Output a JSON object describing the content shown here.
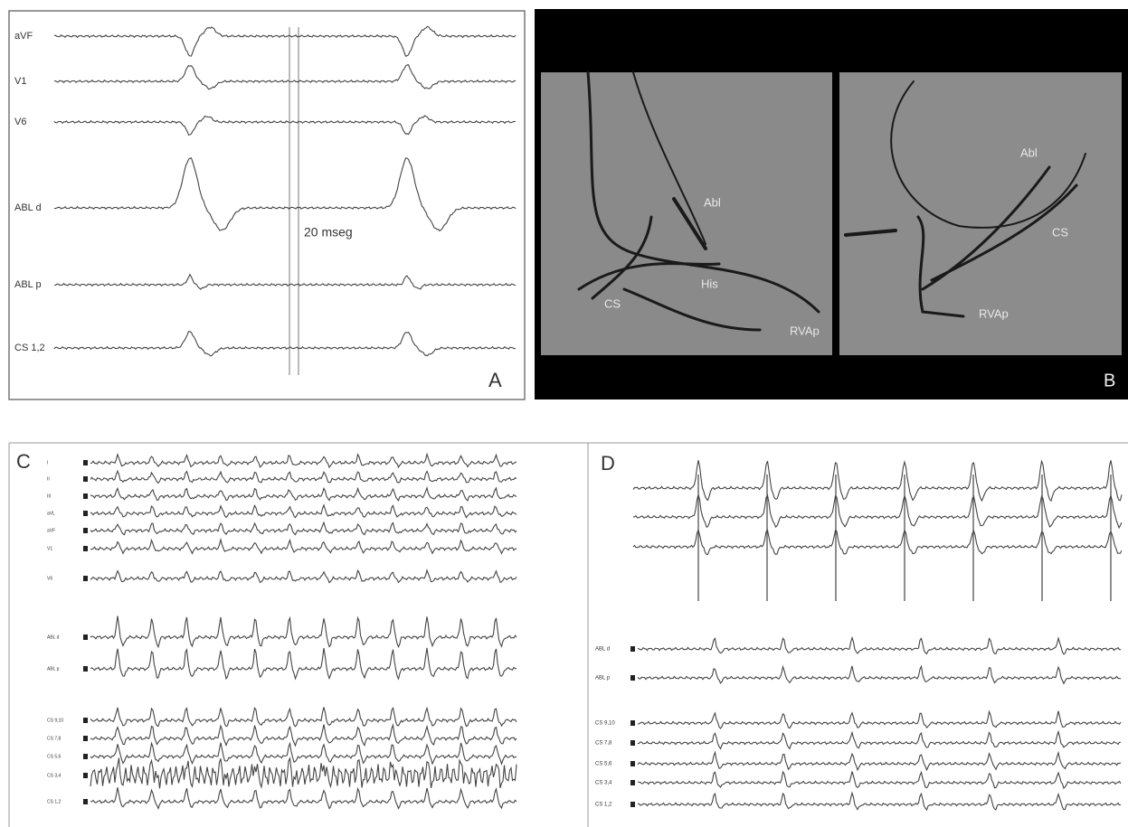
{
  "panel_a": {
    "label": "A",
    "leads": [
      "aVF",
      "V1",
      "V6",
      "ABL d",
      "ABL p",
      "CS 1,2"
    ],
    "annotation": "20 mseg"
  },
  "panel_b": {
    "label": "B",
    "left_labels": [
      "Abl",
      "His",
      "CS",
      "RVAp"
    ],
    "right_labels": [
      "Abl",
      "CS",
      "RVAp"
    ]
  },
  "panel_c": {
    "label": "C",
    "leads": [
      "I",
      "II",
      "III",
      "aVL",
      "aVF",
      "V1",
      "V6",
      "ABL d",
      "ABL p",
      "CS 9,10",
      "CS 7,8",
      "CS 5,6",
      "CS 3,4",
      "CS 1,2"
    ]
  },
  "panel_d": {
    "label": "D",
    "leads": [
      "ABL d",
      "ABL p",
      "CS 9,10",
      "CS 7,8",
      "CS 5,6",
      "CS 3,4",
      "CS 1,2"
    ]
  }
}
